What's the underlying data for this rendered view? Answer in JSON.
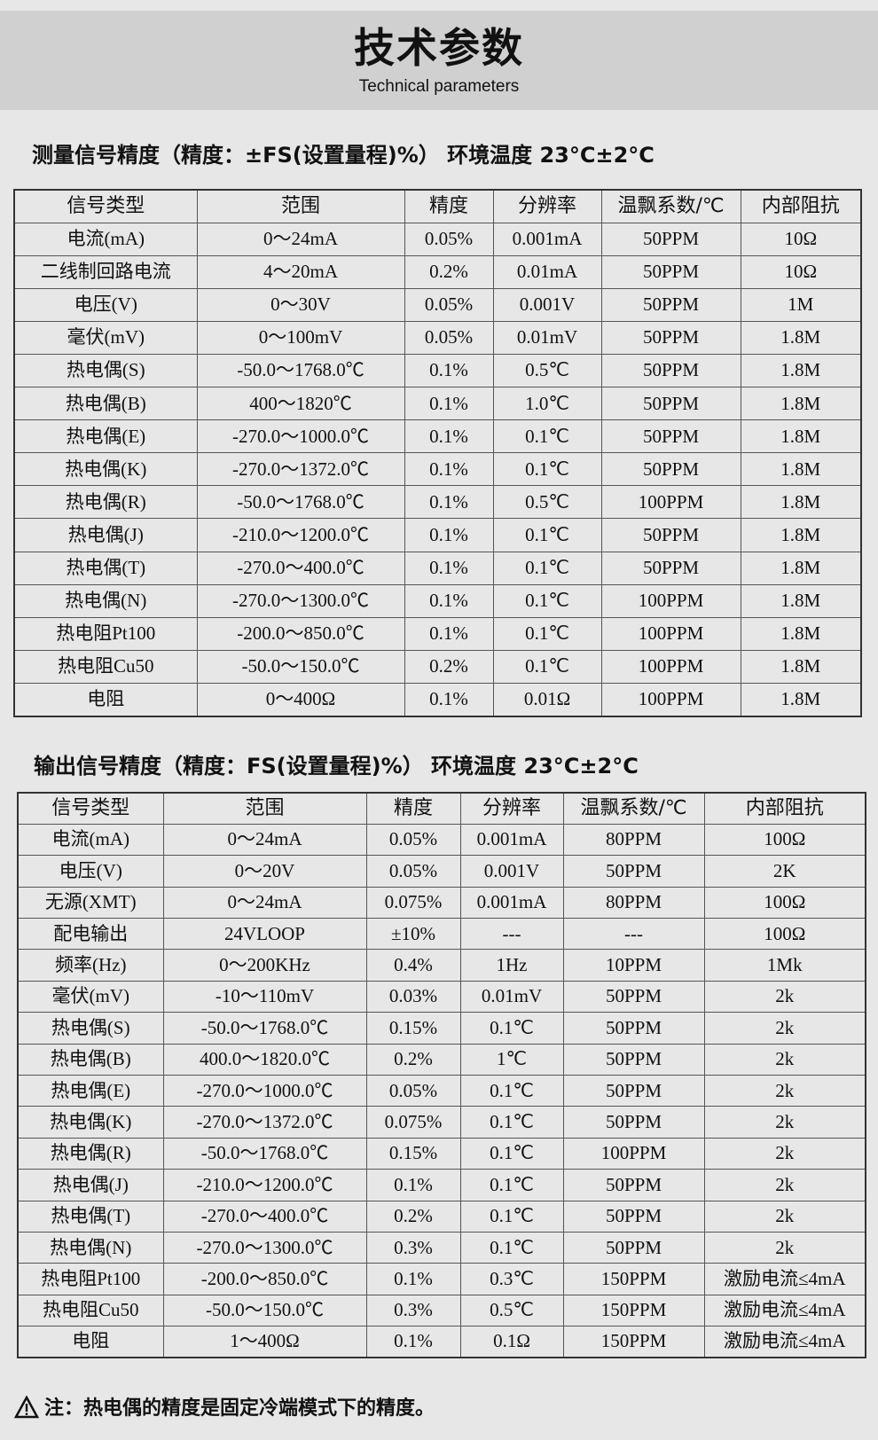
{
  "header": {
    "title": "技术参数",
    "subtitle": "Technical parameters"
  },
  "measure": {
    "title": "测量信号精度（精度：±FS(设置量程)%）  环境温度 23°C±2°C",
    "columns": [
      "信号类型",
      "范围",
      "精度",
      "分辨率",
      "温飘系数/℃",
      "内部阻抗"
    ],
    "rows": [
      [
        "电流(mA)",
        "0～24mA",
        "0.05%",
        "0.001mA",
        "50PPM",
        "10Ω"
      ],
      [
        "二线制回路电流",
        "4～20mA",
        "0.2%",
        "0.01mA",
        "50PPM",
        "10Ω"
      ],
      [
        "电压(V)",
        "0～30V",
        "0.05%",
        "0.001V",
        "50PPM",
        "1M"
      ],
      [
        "毫伏(mV)",
        "0～100mV",
        "0.05%",
        "0.01mV",
        "50PPM",
        "1.8M"
      ],
      [
        "热电偶(S)",
        "-50.0～1768.0℃",
        "0.1%",
        "0.5℃",
        "50PPM",
        "1.8M"
      ],
      [
        "热电偶(B)",
        "400～1820℃",
        "0.1%",
        "1.0℃",
        "50PPM",
        "1.8M"
      ],
      [
        "热电偶(E)",
        "-270.0～1000.0℃",
        "0.1%",
        "0.1℃",
        "50PPM",
        "1.8M"
      ],
      [
        "热电偶(K)",
        "-270.0～1372.0℃",
        "0.1%",
        "0.1℃",
        "50PPM",
        "1.8M"
      ],
      [
        "热电偶(R)",
        "-50.0～1768.0℃",
        "0.1%",
        "0.5℃",
        "100PPM",
        "1.8M"
      ],
      [
        "热电偶(J)",
        "-210.0～1200.0℃",
        "0.1%",
        "0.1℃",
        "50PPM",
        "1.8M"
      ],
      [
        "热电偶(T)",
        "-270.0～400.0℃",
        "0.1%",
        "0.1℃",
        "50PPM",
        "1.8M"
      ],
      [
        "热电偶(N)",
        "-270.0～1300.0℃",
        "0.1%",
        "0.1℃",
        "100PPM",
        "1.8M"
      ],
      [
        "热电阻Pt100",
        "-200.0～850.0℃",
        "0.1%",
        "0.1℃",
        "100PPM",
        "1.8M"
      ],
      [
        "热电阻Cu50",
        "-50.0～150.0℃",
        "0.2%",
        "0.1℃",
        "100PPM",
        "1.8M"
      ],
      [
        "电阻",
        "0～400Ω",
        "0.1%",
        "0.01Ω",
        "100PPM",
        "1.8M"
      ]
    ]
  },
  "output": {
    "title": "输出信号精度（精度：FS(设置量程)%）  环境温度 23°C±2°C",
    "columns": [
      "信号类型",
      "范围",
      "精度",
      "分辨率",
      "温飘系数/℃",
      "内部阻抗"
    ],
    "rows": [
      [
        "电流(mA)",
        "0～24mA",
        "0.05%",
        "0.001mA",
        "80PPM",
        "100Ω"
      ],
      [
        "电压(V)",
        "0～20V",
        "0.05%",
        "0.001V",
        "50PPM",
        "2K"
      ],
      [
        "无源(XMT)",
        "0～24mA",
        "0.075%",
        "0.001mA",
        "80PPM",
        "100Ω"
      ],
      [
        "配电输出",
        "24VLOOP",
        "±10%",
        "---",
        "---",
        "100Ω"
      ],
      [
        "频率(Hz)",
        "0～200KHz",
        "0.4%",
        "1Hz",
        "10PPM",
        "1Mk"
      ],
      [
        "毫伏(mV)",
        "-10～110mV",
        "0.03%",
        "0.01mV",
        "50PPM",
        "2k"
      ],
      [
        "热电偶(S)",
        "-50.0～1768.0℃",
        "0.15%",
        "0.1℃",
        "50PPM",
        "2k"
      ],
      [
        "热电偶(B)",
        "400.0～1820.0℃",
        "0.2%",
        "1℃",
        "50PPM",
        "2k"
      ],
      [
        "热电偶(E)",
        "-270.0～1000.0℃",
        "0.05%",
        "0.1℃",
        "50PPM",
        "2k"
      ],
      [
        "热电偶(K)",
        "-270.0～1372.0℃",
        "0.075%",
        "0.1℃",
        "50PPM",
        "2k"
      ],
      [
        "热电偶(R)",
        "-50.0～1768.0℃",
        "0.15%",
        "0.1℃",
        "100PPM",
        "2k"
      ],
      [
        "热电偶(J)",
        "-210.0～1200.0℃",
        "0.1%",
        "0.1℃",
        "50PPM",
        "2k"
      ],
      [
        "热电偶(T)",
        "-270.0～400.0℃",
        "0.2%",
        "0.1℃",
        "50PPM",
        "2k"
      ],
      [
        "热电偶(N)",
        "-270.0～1300.0℃",
        "0.3%",
        "0.1℃",
        "50PPM",
        "2k"
      ],
      [
        "热电阻Pt100",
        "-200.0～850.0℃",
        "0.1%",
        "0.3℃",
        "150PPM",
        "激励电流≤4mA"
      ],
      [
        "热电阻Cu50",
        "-50.0～150.0℃",
        "0.3%",
        "0.5℃",
        "150PPM",
        "激励电流≤4mA"
      ],
      [
        "电阻",
        "1～400Ω",
        "0.1%",
        "0.1Ω",
        "150PPM",
        "激励电流≤4mA"
      ]
    ]
  },
  "note": {
    "icon": "warning-icon",
    "text": "注：热电偶的精度是固定冷端模式下的精度。"
  }
}
